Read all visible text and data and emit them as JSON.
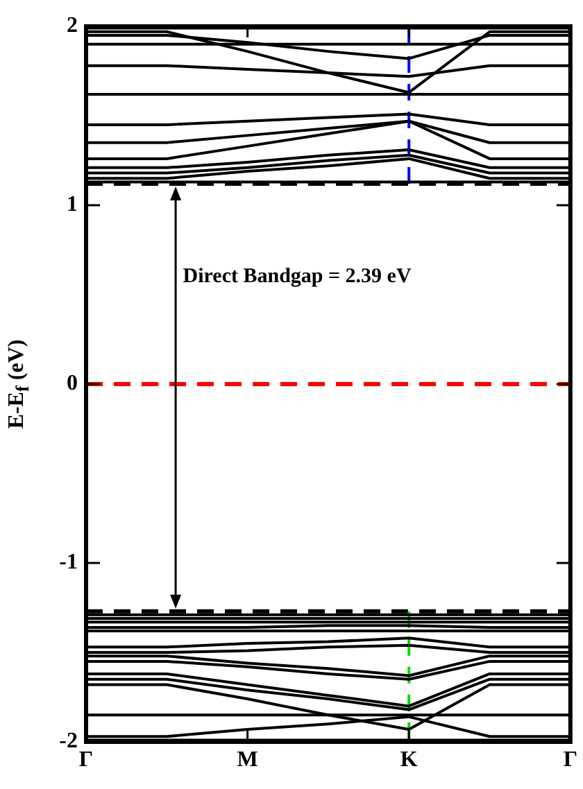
{
  "chart_data": {
    "type": "line",
    "ylabel": "E-E$_{f}$ (eV)",
    "annotations": [
      "Direct Bandgap = 2.39 eV"
    ],
    "categories": [
      "Γ",
      null,
      "M",
      null,
      "K",
      null,
      "Γ"
    ],
    "ylim": [
      -2,
      2
    ],
    "yticks": [
      -2,
      -1,
      0,
      1,
      2
    ],
    "grid": false,
    "legend": false,
    "marker": "none",
    "line_style": "solid",
    "ref_lines": [
      {
        "axis": "y",
        "value": 0,
        "color": "#ff0000",
        "line_style": "dashed"
      },
      {
        "axis": "y",
        "value": 1.12,
        "color": "#000000",
        "line_style": "dashed"
      },
      {
        "axis": "y",
        "value": -1.27,
        "color": "#000000",
        "line_style": "dashed"
      }
    ],
    "series": [
      {
        "color": "#000000",
        "values": [
          1.99,
          1.99,
          1.99,
          1.99,
          1.99,
          1.99,
          1.99
        ]
      },
      {
        "color": "#000000",
        "values": [
          1.97,
          1.97,
          1.86,
          1.74,
          1.63,
          1.97,
          1.97
        ]
      },
      {
        "color": "#000000",
        "values": [
          1.95,
          1.95,
          1.91,
          1.86,
          1.82,
          1.95,
          1.95
        ]
      },
      {
        "color": "#000000",
        "values": [
          1.9,
          1.9,
          1.9,
          1.9,
          1.9,
          1.9,
          1.9
        ]
      },
      {
        "color": "#000000",
        "values": [
          1.78,
          1.78,
          1.76,
          1.74,
          1.72,
          1.78,
          1.78
        ]
      },
      {
        "color": "#000000",
        "values": [
          1.62,
          1.62,
          1.62,
          1.62,
          1.62,
          1.62,
          1.62
        ]
      },
      {
        "color": "#000000",
        "values": [
          1.45,
          1.45,
          1.47,
          1.49,
          1.51,
          1.45,
          1.45
        ]
      },
      {
        "color": "#000000",
        "values": [
          1.35,
          1.35,
          1.39,
          1.43,
          1.47,
          1.35,
          1.35
        ]
      },
      {
        "color": "#000000",
        "values": [
          1.26,
          1.26,
          1.33,
          1.4,
          1.47,
          1.26,
          1.26
        ]
      },
      {
        "color": "#000000",
        "values": [
          1.21,
          1.21,
          1.24,
          1.28,
          1.31,
          1.21,
          1.21
        ]
      },
      {
        "color": "#000000",
        "values": [
          1.18,
          1.18,
          1.21,
          1.25,
          1.28,
          1.18,
          1.18
        ]
      },
      {
        "color": "#000000",
        "values": [
          1.15,
          1.15,
          1.19,
          1.22,
          1.26,
          1.15,
          1.15
        ]
      },
      {
        "color": "#000000",
        "values": [
          1.13,
          1.13,
          1.13,
          1.13,
          1.13,
          1.13,
          1.13
        ]
      },
      {
        "color": "#000000",
        "values": [
          -1.29,
          -1.29,
          -1.29,
          -1.29,
          -1.29,
          -1.29,
          -1.29
        ]
      },
      {
        "color": "#000000",
        "values": [
          -1.31,
          -1.31,
          -1.31,
          -1.31,
          -1.31,
          -1.31,
          -1.31
        ]
      },
      {
        "color": "#000000",
        "values": [
          -1.33,
          -1.33,
          -1.33,
          -1.33,
          -1.33,
          -1.33,
          -1.33
        ]
      },
      {
        "color": "#000000",
        "values": [
          -1.36,
          -1.36,
          -1.36,
          -1.35,
          -1.35,
          -1.36,
          -1.36
        ]
      },
      {
        "color": "#000000",
        "values": [
          -1.38,
          -1.38,
          -1.38,
          -1.38,
          -1.38,
          -1.38,
          -1.38
        ]
      },
      {
        "color": "#000000",
        "values": [
          -1.47,
          -1.47,
          -1.45,
          -1.44,
          -1.42,
          -1.47,
          -1.47
        ]
      },
      {
        "color": "#000000",
        "values": [
          -1.5,
          -1.5,
          -1.49,
          -1.47,
          -1.46,
          -1.5,
          -1.5
        ]
      },
      {
        "color": "#000000",
        "values": [
          -1.52,
          -1.52,
          -1.56,
          -1.59,
          -1.63,
          -1.52,
          -1.52
        ]
      },
      {
        "color": "#000000",
        "values": [
          -1.55,
          -1.55,
          -1.58,
          -1.62,
          -1.65,
          -1.55,
          -1.55
        ]
      },
      {
        "color": "#000000",
        "values": [
          -1.62,
          -1.62,
          -1.68,
          -1.74,
          -1.8,
          -1.62,
          -1.62
        ]
      },
      {
        "color": "#000000",
        "values": [
          -1.65,
          -1.65,
          -1.71,
          -1.76,
          -1.82,
          -1.65,
          -1.65
        ]
      },
      {
        "color": "#000000",
        "values": [
          -1.68,
          -1.68,
          -1.76,
          -1.85,
          -1.93,
          -1.68,
          -1.68
        ]
      },
      {
        "color": "#000000",
        "values": [
          -1.85,
          -1.85,
          -1.85,
          -1.85,
          -1.85,
          -1.85,
          -1.85
        ]
      },
      {
        "color": "#000000",
        "values": [
          -1.97,
          -1.97,
          -1.93,
          -1.9,
          -1.86,
          -1.97,
          -1.97
        ]
      },
      {
        "color": "#000000",
        "values": [
          -1.99,
          -1.99,
          -1.99,
          -1.99,
          -1.99,
          -1.99,
          -1.99
        ]
      },
      {
        "color": "#0000ff",
        "line_style": "dashed",
        "x": [
          "K",
          "K"
        ],
        "values": [
          1.12,
          2
        ]
      },
      {
        "color": "#00dd00",
        "line_style": "dashed",
        "x": [
          "K",
          "K"
        ],
        "values": [
          -1.27,
          -2
        ]
      }
    ]
  }
}
